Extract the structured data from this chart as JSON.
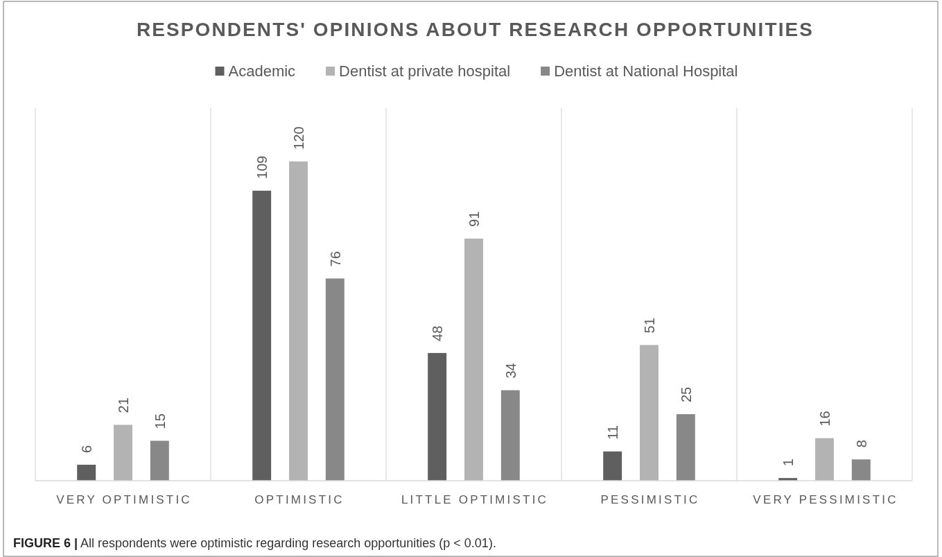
{
  "chart_data": {
    "type": "bar",
    "title": "RESPONDENTS' OPINIONS ABOUT RESEARCH OPPORTUNITIES",
    "categories": [
      "VERY OPTIMISTIC",
      "OPTIMISTIC",
      "LITTLE OPTIMISTIC",
      "PESSIMISTIC",
      "VERY PESSIMISTIC"
    ],
    "series": [
      {
        "name": "Academic",
        "color": "#5f5f5f",
        "values": [
          6,
          109,
          48,
          11,
          1
        ]
      },
      {
        "name": "Dentist at private hospital",
        "color": "#b3b3b3",
        "values": [
          21,
          120,
          91,
          51,
          16
        ]
      },
      {
        "name": "Dentist at National Hospital",
        "color": "#888888",
        "values": [
          15,
          76,
          34,
          25,
          8
        ]
      }
    ],
    "ylim": [
      0,
      140
    ],
    "tick_labels": "x",
    "grid": "x",
    "legend": "top",
    "data_labels": true,
    "annotations": [
      "FIGURE 6 | All respondents were optimistic regarding research opportunities (p < 0.01)."
    ]
  }
}
